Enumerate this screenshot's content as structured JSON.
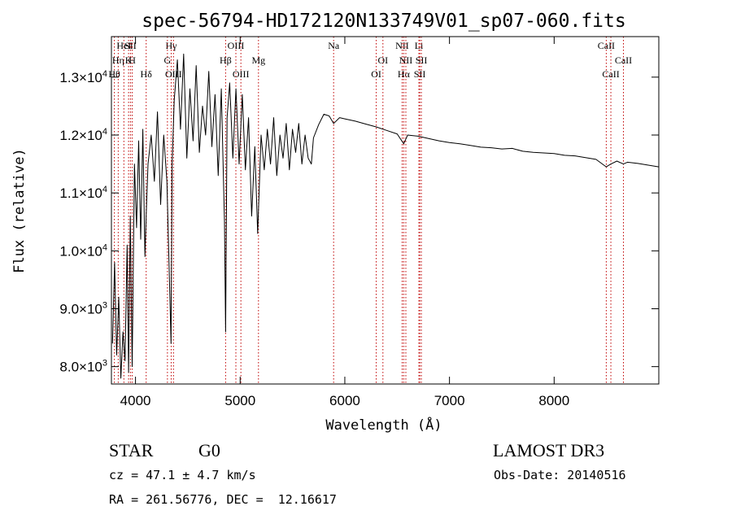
{
  "chart_data": {
    "type": "line",
    "title": "spec-56794-HD172120N133749V01_sp07-060.fits",
    "xlabel": "Wavelength (Å)",
    "ylabel": "Flux (relative)",
    "xlim": [
      3770,
      9000
    ],
    "ylim": [
      7700,
      13700
    ],
    "xticks": [
      4000,
      5000,
      6000,
      7000,
      8000
    ],
    "xtick_labels": [
      "4000",
      "5000",
      "6000",
      "7000",
      "8000"
    ],
    "yticks": [
      {
        "value": 8000,
        "mantissa": "8.0",
        "exp": "3"
      },
      {
        "value": 9000,
        "mantissa": "9.0",
        "exp": "3"
      },
      {
        "value": 10000,
        "mantissa": "1.0",
        "exp": "4"
      },
      {
        "value": 11000,
        "mantissa": "1.1",
        "exp": "4"
      },
      {
        "value": 12000,
        "mantissa": "1.2",
        "exp": "4"
      },
      {
        "value": 13000,
        "mantissa": "1.3",
        "exp": "4"
      }
    ],
    "series": [
      {
        "x": [
          3780,
          3800,
          3820,
          3840,
          3860,
          3880,
          3900,
          3920,
          3934,
          3950,
          3968,
          3990,
          4010,
          4030,
          4050,
          4070,
          4090,
          4102,
          4120,
          4150,
          4180,
          4210,
          4240,
          4270,
          4300,
          4320,
          4340,
          4350,
          4370,
          4400,
          4430,
          4460,
          4490,
          4520,
          4550,
          4580,
          4610,
          4640,
          4670,
          4700,
          4730,
          4760,
          4790,
          4820,
          4850,
          4861,
          4875,
          4900,
          4930,
          4960,
          4990,
          5020,
          5050,
          5080,
          5110,
          5140,
          5167,
          5183,
          5200,
          5230,
          5260,
          5290,
          5320,
          5350,
          5380,
          5410,
          5440,
          5470,
          5500,
          5530,
          5560,
          5590,
          5620,
          5650,
          5680,
          5700,
          5750,
          5800,
          5850,
          5893,
          5950,
          6000,
          6100,
          6200,
          6300,
          6400,
          6500,
          6563,
          6600,
          6700,
          6800,
          6900,
          7000,
          7100,
          7200,
          7300,
          7400,
          7500,
          7600,
          7700,
          7800,
          7900,
          8000,
          8100,
          8200,
          8300,
          8400,
          8498,
          8542,
          8600,
          8662,
          8700,
          8800,
          8900,
          9000
        ],
        "y": [
          8400,
          9800,
          8200,
          9200,
          7800,
          8600,
          8100,
          10100,
          7900,
          10600,
          8000,
          11500,
          10400,
          11900,
          10200,
          12100,
          9900,
          10600,
          11500,
          12000,
          11200,
          12400,
          10800,
          12000,
          11200,
          9800,
          8400,
          11500,
          12600,
          13300,
          12100,
          13400,
          11600,
          12800,
          11900,
          13200,
          11700,
          12500,
          12000,
          13100,
          11800,
          12700,
          11300,
          12800,
          10500,
          8600,
          12300,
          12900,
          11600,
          12800,
          11500,
          12700,
          11400,
          12300,
          10600,
          11800,
          10300,
          11100,
          12000,
          11400,
          12100,
          11500,
          12300,
          11300,
          12000,
          11600,
          12200,
          11400,
          12100,
          11700,
          12200,
          11500,
          12000,
          11600,
          11500,
          11950,
          12180,
          12360,
          12330,
          12200,
          12300,
          12280,
          12240,
          12190,
          12140,
          12080,
          12020,
          11850,
          12000,
          11980,
          11940,
          11900,
          11870,
          11850,
          11820,
          11790,
          11780,
          11760,
          11770,
          11720,
          11700,
          11690,
          11680,
          11650,
          11640,
          11610,
          11580,
          11450,
          11500,
          11550,
          11500,
          11530,
          11510,
          11480,
          11450
        ]
      }
    ],
    "line_markers": [
      {
        "label": "Hθ",
        "x": 3798,
        "row": 3
      },
      {
        "label": "Hη",
        "x": 3835,
        "row": 2
      },
      {
        "label": "HeI",
        "x": 3889,
        "row": 1
      },
      {
        "label": "K",
        "x": 3934,
        "row": 2
      },
      {
        "label": "SII",
        "x": 3952,
        "row": 1
      },
      {
        "label": "H",
        "x": 3969,
        "row": 2
      },
      {
        "label": "Hδ",
        "x": 4102,
        "row": 3
      },
      {
        "label": "Hγ",
        "x": 4341,
        "row": 1
      },
      {
        "label": "G",
        "x": 4305,
        "row": 2
      },
      {
        "label": "OIII",
        "x": 4363,
        "row": 3
      },
      {
        "label": "Hβ",
        "x": 4861,
        "row": 2
      },
      {
        "label": "OIII",
        "x": 4959,
        "row": 1
      },
      {
        "label": "OIII",
        "x": 5007,
        "row": 3
      },
      {
        "label": "Mg",
        "x": 5175,
        "row": 2
      },
      {
        "label": "Na",
        "x": 5893,
        "row": 1
      },
      {
        "label": "OI",
        "x": 6300,
        "row": 3
      },
      {
        "label": "OI",
        "x": 6364,
        "row": 2
      },
      {
        "label": "NII",
        "x": 6548,
        "row": 1
      },
      {
        "label": "Hα",
        "x": 6563,
        "row": 3
      },
      {
        "label": "NII",
        "x": 6583,
        "row": 2
      },
      {
        "label": "Li",
        "x": 6708,
        "row": 1
      },
      {
        "label": "SII",
        "x": 6716,
        "row": 3
      },
      {
        "label": "SII",
        "x": 6731,
        "row": 2
      },
      {
        "label": "CaII",
        "x": 8498,
        "row": 1
      },
      {
        "label": "CaII",
        "x": 8542,
        "row": 3
      },
      {
        "label": "CaII",
        "x": 8662,
        "row": 2
      }
    ],
    "grid": false,
    "line_color": "#000000",
    "marker_color": "#c00000"
  },
  "info": {
    "class": "STAR",
    "subclass": "G0",
    "survey": "LAMOST DR3",
    "cz": "cz = 47.1 ± 4.7 km/s",
    "obs_date": "Obs-Date: 20140516",
    "radec": "RA = 261.56776, DEC =  12.16617"
  }
}
